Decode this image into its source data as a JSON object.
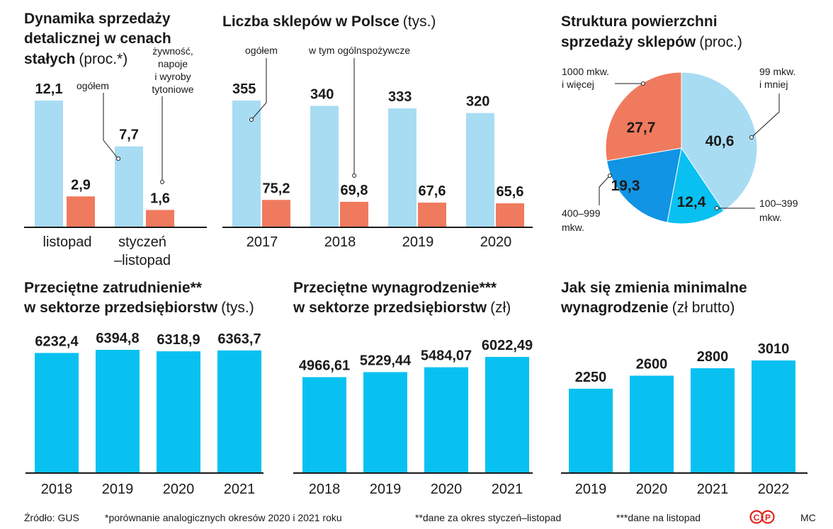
{
  "colors": {
    "light_blue": "#a8dcf3",
    "salmon": "#f07a5e",
    "cyan": "#09c1f1",
    "mid_blue": "#16a6e8",
    "dark_blue": "#1194e4"
  },
  "chart_data": [
    {
      "id": "retail",
      "type": "bar",
      "title": [
        "Dynamika sprzedaży",
        "detalicznej w cenach",
        "stałych"
      ],
      "unit": "(proc.*)",
      "categories": [
        [
          "listopad"
        ],
        [
          "styczeń",
          "–listopad"
        ]
      ],
      "series": [
        {
          "name": "ogółem",
          "values": [
            12.1,
            7.7
          ],
          "labels": [
            "12,1",
            "7,7"
          ]
        },
        {
          "name": "żywność, napoje i wyroby tytoniowe",
          "name_lines": [
            "żywność,",
            "napoje",
            "i wyroby",
            "tytoniowe"
          ],
          "values": [
            2.9,
            1.6
          ],
          "labels": [
            "2,9",
            "1,6"
          ]
        }
      ],
      "ylim": [
        0,
        12.1
      ]
    },
    {
      "id": "shops",
      "type": "bar",
      "title": [
        "Liczba sklepów w Polsce"
      ],
      "unit": "(tys.)",
      "categories": [
        "2017",
        "2018",
        "2019",
        "2020"
      ],
      "series": [
        {
          "name": "ogółem",
          "values": [
            355,
            340,
            333,
            320
          ],
          "labels": [
            "355",
            "340",
            "333",
            "320"
          ]
        },
        {
          "name": "w tym ogólnspożywcze",
          "values": [
            75.2,
            69.8,
            67.6,
            65.6
          ],
          "labels": [
            "75,2",
            "69,8",
            "67,6",
            "65,6"
          ]
        }
      ],
      "ylim": [
        0,
        355
      ]
    },
    {
      "id": "structure",
      "type": "pie",
      "title": [
        "Struktura powierzchni",
        "sprzedaży sklepów"
      ],
      "unit": "(proc.)",
      "slices": [
        {
          "name": "99 mkw. i mniej",
          "name_lines": [
            "99 mkw.",
            "i mniej"
          ],
          "value": 40.6,
          "label": "40,6"
        },
        {
          "name": "100–399 mkw.",
          "name_lines": [
            "100–399",
            "mkw."
          ],
          "value": 12.4,
          "label": "12,4"
        },
        {
          "name": "400–999 mkw.",
          "name_lines": [
            "400–999",
            "mkw."
          ],
          "value": 19.3,
          "label": "19,3"
        },
        {
          "name": "1000 mkw. i więcej",
          "name_lines": [
            "1000 mkw.",
            "i więcej"
          ],
          "value": 27.7,
          "label": "27,7"
        }
      ]
    },
    {
      "id": "employment",
      "type": "bar",
      "title": [
        "Przeciętne zatrudnienie**",
        "w sektorze przedsiębiorstw"
      ],
      "unit": "(tys.)",
      "categories": [
        "2018",
        "2019",
        "2020",
        "2021"
      ],
      "values": [
        6232.4,
        6394.8,
        6318.9,
        6363.7
      ],
      "labels": [
        "6232,4",
        "6394,8",
        "6318,9",
        "6363,7"
      ],
      "ylim": [
        0,
        6394.8
      ]
    },
    {
      "id": "wages",
      "type": "bar",
      "title": [
        "Przeciętne wynagrodzenie***",
        "w sektorze przedsiębiorstw"
      ],
      "unit": "(zł)",
      "categories": [
        "2018",
        "2019",
        "2020",
        "2021"
      ],
      "values": [
        4966.61,
        5229.44,
        5484.07,
        6022.49
      ],
      "labels": [
        "4966,61",
        "5229,44",
        "5484,07",
        "6022,49"
      ],
      "ylim": [
        0,
        6022.49
      ]
    },
    {
      "id": "minwage",
      "type": "bar",
      "title": [
        "Jak się zmienia minimalne",
        "wynagrodzenie"
      ],
      "unit": "(zł brutto)",
      "categories": [
        "2019",
        "2020",
        "2021",
        "2022"
      ],
      "values": [
        2250,
        2600,
        2800,
        3010
      ],
      "labels": [
        "2250",
        "2600",
        "2800",
        "3010"
      ],
      "ylim": [
        0,
        3010
      ]
    }
  ],
  "footer": {
    "source": "Źródło: GUS",
    "notes": [
      "*porównanie analogicznych okresów 2020 i 2021 roku",
      "**dane za okres styczeń–listopad",
      "***dane na listopad"
    ],
    "logo_text": "CP",
    "author": "MC"
  }
}
